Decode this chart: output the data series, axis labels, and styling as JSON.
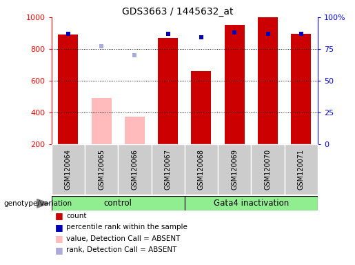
{
  "title": "GDS3663 / 1445632_at",
  "samples": [
    "GSM120064",
    "GSM120065",
    "GSM120066",
    "GSM120067",
    "GSM120068",
    "GSM120069",
    "GSM120070",
    "GSM120071"
  ],
  "bar_values": [
    890,
    490,
    375,
    870,
    660,
    950,
    1000,
    895
  ],
  "bar_colors": [
    "#cc0000",
    "#ffbbbb",
    "#ffbbbb",
    "#cc0000",
    "#cc0000",
    "#cc0000",
    "#cc0000",
    "#cc0000"
  ],
  "rank_values": [
    87,
    null,
    null,
    87,
    84,
    88,
    87,
    87
  ],
  "rank_color": "#0000bb",
  "absent_rank_values": [
    null,
    77,
    70,
    null,
    null,
    null,
    null,
    null
  ],
  "absent_rank_color": "#aaaadd",
  "ylim_left": [
    200,
    1000
  ],
  "ylim_right": [
    0,
    100
  ],
  "yticks_left": [
    200,
    400,
    600,
    800,
    1000
  ],
  "yticks_right": [
    0,
    25,
    50,
    75,
    100
  ],
  "ytick_labels_right": [
    "0",
    "25",
    "50",
    "75",
    "100%"
  ],
  "grid_values": [
    400,
    600,
    800
  ],
  "bar_width": 0.6,
  "group1_label": "control",
  "group1_indices": [
    0,
    1,
    2,
    3
  ],
  "group2_label": "Gata4 inactivation",
  "group2_indices": [
    4,
    5,
    6,
    7
  ],
  "group_color": "#90EE90",
  "tick_box_color": "#cccccc",
  "legend_items": [
    {
      "color": "#cc0000",
      "label": "count"
    },
    {
      "color": "#0000bb",
      "label": "percentile rank within the sample"
    },
    {
      "color": "#ffbbbb",
      "label": "value, Detection Call = ABSENT"
    },
    {
      "color": "#aaaadd",
      "label": "rank, Detection Call = ABSENT"
    }
  ]
}
